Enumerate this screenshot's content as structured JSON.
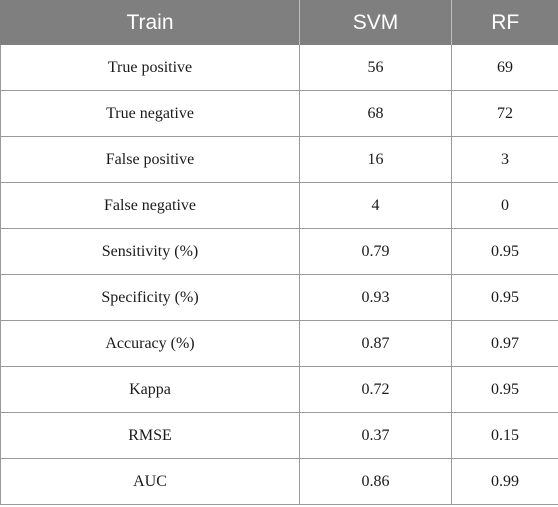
{
  "table": {
    "headers": [
      "Train",
      "SVM",
      "RF"
    ],
    "rows": [
      [
        "True positive",
        "56",
        "69"
      ],
      [
        "True negative",
        "68",
        "72"
      ],
      [
        "False positive",
        "16",
        "3"
      ],
      [
        "False negative",
        "4",
        "0"
      ],
      [
        "Sensitivity (%)",
        "0.79",
        "0.95"
      ],
      [
        "Specificity (%)",
        "0.93",
        "0.95"
      ],
      [
        "Accuracy (%)",
        "0.87",
        "0.97"
      ],
      [
        "Kappa",
        "0.72",
        "0.95"
      ],
      [
        "RMSE",
        "0.37",
        "0.15"
      ],
      [
        "AUC",
        "0.86",
        "0.99"
      ]
    ]
  },
  "colors": {
    "header_background": "#7f7f7f",
    "header_text": "#ffffff",
    "grid_line": "#9a9a9a"
  }
}
